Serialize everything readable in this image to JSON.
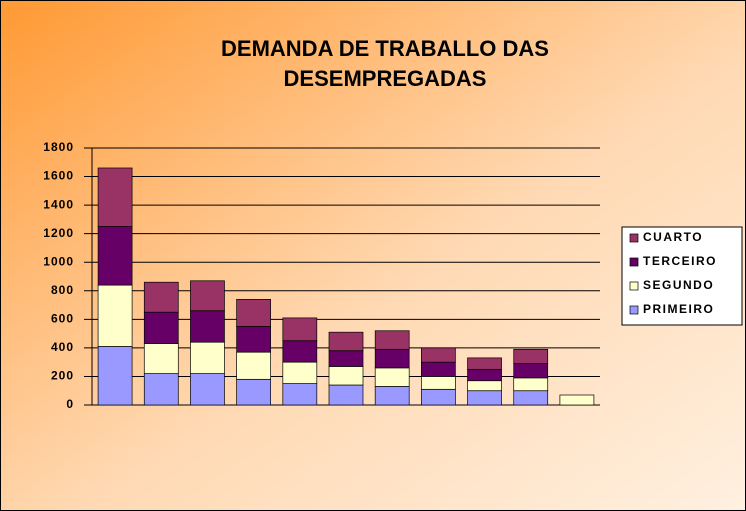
{
  "chart_data": {
    "type": "stacked_bar",
    "title": "DEMANDA DE TRABALLO DAS DESEMPREGADAS",
    "categories": [
      null,
      null,
      null,
      null,
      null,
      null,
      null,
      null,
      null,
      null,
      null
    ],
    "series": [
      {
        "name": "PRIMEIRO",
        "color": "#9999ff",
        "values": [
          410,
          220,
          220,
          180,
          150,
          140,
          130,
          110,
          100,
          100,
          0
        ]
      },
      {
        "name": "SEGUNDO",
        "color": "#ffffcc",
        "values": [
          430,
          210,
          220,
          190,
          150,
          130,
          130,
          90,
          70,
          90,
          70
        ]
      },
      {
        "name": "TERCEIRO",
        "color": "#660066",
        "values": [
          410,
          220,
          220,
          180,
          150,
          110,
          130,
          100,
          80,
          100,
          0
        ]
      },
      {
        "name": "CUARTO",
        "color": "#993366",
        "values": [
          410,
          210,
          210,
          190,
          160,
          130,
          130,
          100,
          80,
          100,
          0
        ]
      }
    ],
    "ylim": [
      0,
      1800
    ],
    "yticks": [
      0,
      200,
      400,
      600,
      800,
      1000,
      1200,
      1400,
      1600,
      1800
    ],
    "grid": true,
    "legend": "right"
  }
}
